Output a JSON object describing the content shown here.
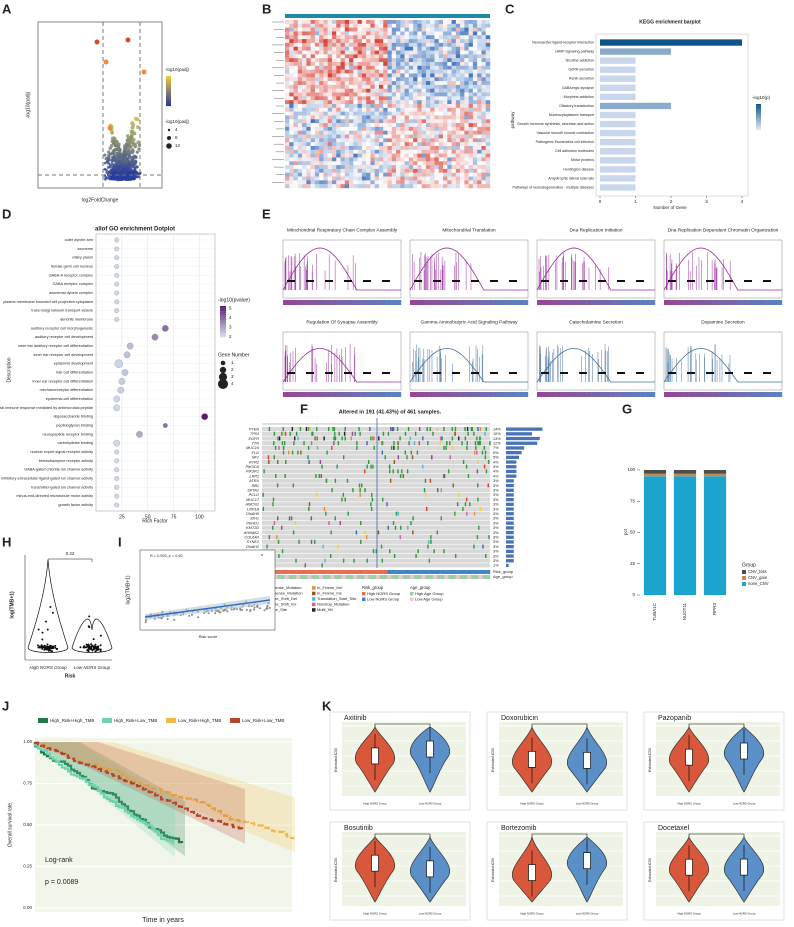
{
  "panels": {
    "a": {
      "letter": "A",
      "xlabel": "log2FoldChange",
      "ylabel": "-log10(padj)",
      "color_title": "-log10(padj)",
      "size_title": "-log10(padj)",
      "size_labels": [
        "4",
        "8",
        "12"
      ]
    },
    "b": {
      "letter": "B"
    },
    "c": {
      "letter": "C",
      "type": "bar",
      "title": "KEGG enrichment barplot",
      "xlabel": "Number of Gene",
      "ylabel": "pathway",
      "legend_title": "-log10(p)",
      "categories": [
        "Neuroactive ligand-receptor interaction",
        "cAMP signaling pathway",
        "Nicotine addiction",
        "GnRH secretion",
        "Renin secretion",
        "GABAergic synapse",
        "Morphine addiction",
        "Olfactory transduction",
        "Nucleocytoplasmic transport",
        "Growth hormone synthesis, secretion and action",
        "Vascular smooth muscle contraction",
        "Pathogenic Escherichia coli infection",
        "Cell adhesion molecules",
        "Motor proteins",
        "Huntington disease",
        "Amyotrophic lateral sclerosis",
        "Pathways of neurodegeneration - multiple diseases"
      ],
      "values": [
        4,
        2,
        1,
        1,
        1,
        1,
        1,
        2,
        1,
        1,
        1,
        1,
        1,
        1,
        1,
        1,
        1
      ],
      "xlim": [
        0,
        4
      ],
      "xticks": [
        0,
        1,
        2,
        3,
        4
      ]
    },
    "d": {
      "letter": "D",
      "type": "scatter",
      "title": "allof GO enrichment Dotplot",
      "xlabel": "Rich Factor",
      "ylabel": "Description",
      "color_title": "-log10(pvalue)",
      "color_ticks": [
        2,
        3,
        4,
        5
      ],
      "size_title": "Gene Number",
      "size_ticks": [
        1,
        2,
        3,
        4
      ],
      "categories": [
        "outer dynein arm",
        "axoneme",
        "ciliary plasm",
        "female germ cell nucleus",
        "GABA-A receptor complex",
        "GABA receptor complex",
        "axonemal dynein complex",
        "plasma membrane bounded cell projection cytoplasm",
        "trans-Golgi network transport vesicle",
        "dendrite membrane",
        "auditory receptor cell morphogenesis",
        "auditory receptor cell development",
        "inner ear auditory receptor cell differentiation",
        "inner ear receptor cell development",
        "epidermis development",
        "hair cell differentiation",
        "inner ear receptor cell differentiation",
        "mechanoreceptor differentiation",
        "epidermal cell differentiation",
        "antimicrobial humoral immune response mediated by antimicrobial peptide",
        "oligosaccharide binding",
        "peptidoglycan binding",
        "neuropeptide receptor binding",
        "carbohydrate binding",
        "nuclear export signal receptor activity",
        "benzodiazepine receptor activity",
        "GABA-gated chloride ion channel activity",
        "inhibitory extracellular ligand-gated ion channel activity",
        "transmitter-gated ion channel activity",
        "minus-end-directed microtubule motor activity",
        "growth factor activity"
      ],
      "values": [
        20,
        20,
        20,
        20,
        20,
        20,
        20,
        20,
        20,
        20,
        67,
        57,
        33,
        30,
        22,
        28,
        25,
        24,
        20,
        20,
        105,
        67,
        42,
        20,
        20,
        20,
        20,
        20,
        20,
        20,
        20
      ],
      "sizes": [
        1,
        1,
        1,
        1,
        1,
        1,
        1,
        1,
        1,
        1,
        2,
        2,
        2,
        2,
        3,
        2,
        2,
        2,
        2,
        2,
        2,
        1,
        2,
        2,
        1,
        1,
        1,
        1,
        1,
        1,
        1
      ],
      "xlim": [
        0,
        115
      ],
      "xticks": [
        25,
        50,
        75,
        100
      ]
    },
    "e": {
      "letter": "E",
      "titles": [
        "Mitochondrial Respiratory Chain Complex Assembly",
        "Mitochondrial Translation",
        "Dna Replication Initiation",
        "Dna Replication Dependent Chromatin Organization",
        "Regulation Of Synapse Assembly",
        "Gamma Aminobutyric Acid Signaling Pathway",
        "Catecholamine Secretion",
        "Dopamine Secretion"
      ]
    },
    "f": {
      "letter": "F",
      "title": "Altered in 191 (41.43%) of 461 samples.",
      "genes": [
        "PTEN",
        "TP53",
        "EGFR",
        "TTN",
        "MUC16",
        "FLG",
        "NF1",
        "RYR2",
        "PIK3CA",
        "PIK3R1",
        "LRP2",
        "ATRX",
        "RB1",
        "SPTA1",
        "PCLO",
        "MUC17",
        "HMCN1",
        "LRP1B",
        "DNAH5",
        "IDH1",
        "PKHD1",
        "KMT2D",
        "AHNAK2",
        "COL6A3",
        "SYNE1",
        "DNAH2",
        "HYDIN",
        "OBSCN",
        "RELN",
        "USH2A"
      ],
      "percents": [
        "14%",
        "10%",
        "13%",
        "12%",
        "7%",
        "6%",
        "5%",
        "4%",
        "4%",
        "4%",
        "4%",
        "3%",
        "3%",
        "3%",
        "3%",
        "3%",
        "3%",
        "3%",
        "3%",
        "3%",
        "3%",
        "3%",
        "3%",
        "3%",
        "3%",
        "3%",
        "3%",
        "3%",
        "3%",
        "1%"
      ],
      "tracks": [
        "Risk_group",
        "Age_group"
      ],
      "legend": [
        "Missense_Mutation",
        "Nonsense_Mutation",
        "Frame_Shift_Del",
        "Frame_Shift_Ins",
        "Splice_Site",
        "In_Frame_Del",
        "In_Frame_Ins",
        "Translation_Start_Site",
        "Nonstop_Mutation",
        "Multi_Hit"
      ],
      "risk_title": "Risk_group",
      "risk_items": [
        "High NGRS Group",
        "Low NGRS Group"
      ],
      "age_title": "Age_group",
      "age_items": [
        "High Age Group",
        "Low Age Group"
      ]
    },
    "g": {
      "letter": "G",
      "type": "bar",
      "ylabel": "pct",
      "legend_title": "Group",
      "categories": [
        "TUBA1C",
        "NUDT11",
        "RPR3"
      ],
      "series": [
        {
          "name": "none_CNV",
          "color": "#1ba4cd",
          "values": [
            95,
            95,
            95
          ]
        },
        {
          "name": "CNV_gain",
          "color": "#c58a4f",
          "values": [
            2,
            2,
            2
          ]
        },
        {
          "name": "CNV_loss",
          "color": "#4d4d4d",
          "values": [
            3,
            3,
            3
          ]
        }
      ],
      "ylim": [
        0,
        100
      ],
      "yticks": [
        0,
        25,
        50,
        75,
        100
      ]
    },
    "h": {
      "letter": "H",
      "ylabel": "log(TMB+1)",
      "xlabel": "Risk",
      "groups": [
        "High NGRS Group",
        "Low NGRS Group"
      ],
      "p": "0.22"
    },
    "i": {
      "letter": "I",
      "stat": "R = 0.093, p = 0.40",
      "ylabel": "log2(TMB+1)",
      "xlabel": "Risk score"
    },
    "j": {
      "letter": "J",
      "ylabel": "Overall survival rate",
      "xlabel": "Time in years",
      "test": "Log-rank",
      "p": "p = 0.0089",
      "series": [
        {
          "name": "High_Risk+High_TMB",
          "color": "#1f7a47"
        },
        {
          "name": "High_Risk+Low_TMB",
          "color": "#6fd3ad"
        },
        {
          "name": "Low_Risk+High_TMB",
          "color": "#f0b94a"
        },
        {
          "name": "Low_Risk+Low_TMB",
          "color": "#b4462a"
        }
      ],
      "ylim": [
        0,
        1
      ],
      "yticks": [
        {
          "value": 0,
          "label": "0.00"
        },
        {
          "value": 0.25,
          "label": "0.25"
        },
        {
          "value": 0.5,
          "label": "0.50"
        },
        {
          "value": 0.75,
          "label": "0.75"
        },
        {
          "value": 1,
          "label": "1.00"
        }
      ]
    },
    "k": {
      "letter": "K",
      "drugs": [
        "Axitinib",
        "Doxorubicin",
        "Pazopanib",
        "Bosutinib",
        "Bortezomib",
        "Docetaxel"
      ],
      "ylabel": "Estimated IC50",
      "groups": [
        "High NGRS Group",
        "Low NGRS Group"
      ]
    }
  }
}
